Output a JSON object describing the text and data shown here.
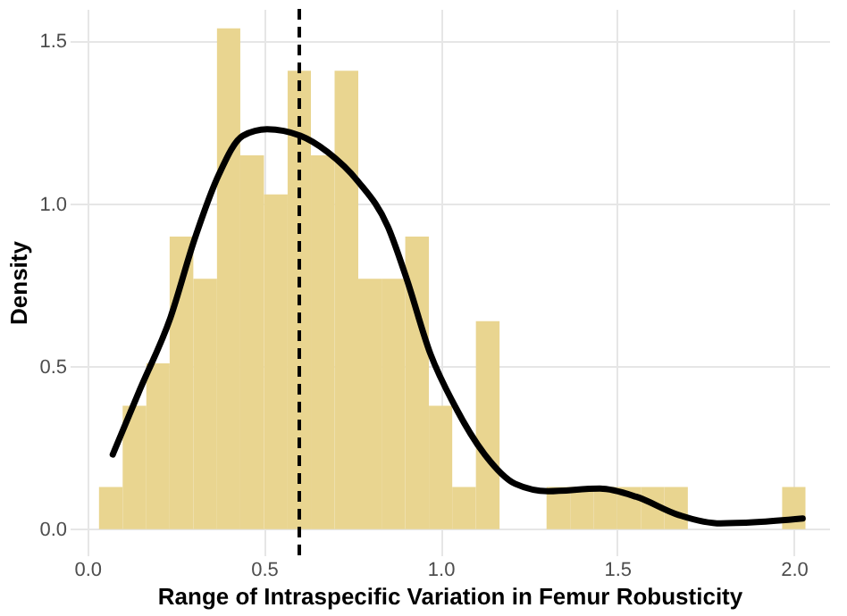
{
  "chart_data": {
    "type": "histogram",
    "xlabel": "Range of Intraspecific Variation in Femur Robusticity",
    "ylabel": "Density",
    "xlim": [
      -0.05,
      2.1
    ],
    "xticks": [
      {
        "value": 0,
        "label": "0.0"
      },
      0.5,
      {
        "value": 1,
        "label": "1.0"
      },
      1.5,
      {
        "value": 2,
        "label": "2.0"
      }
    ],
    "ylim": [
      -0.08,
      1.6
    ],
    "yticks": [
      {
        "value": 0,
        "label": "0.0"
      },
      0.5,
      {
        "value": 1,
        "label": "1.0"
      },
      1.5
    ],
    "grid": true,
    "series": [
      {
        "color": "#e9d590",
        "bins": [
          0.033,
          0.1,
          0.167,
          0.233,
          0.3,
          0.367,
          0.433,
          0.5,
          0.567,
          0.633,
          0.7,
          0.767,
          0.833,
          0.9,
          0.967,
          1.033,
          1.1,
          1.167,
          1.233,
          1.3,
          1.367,
          1.433,
          1.5,
          1.567,
          1.633,
          1.7,
          1.767,
          1.833,
          1.9,
          1.967,
          2.033
        ],
        "values": [
          0.13,
          0.38,
          0.51,
          0.9,
          0.77,
          1.54,
          1.15,
          1.03,
          1.41,
          1.15,
          1.41,
          0.77,
          0.77,
          0.9,
          0.38,
          0.13,
          0.64,
          0,
          0,
          0.13,
          0.13,
          0.13,
          0.13,
          0.13,
          0.13,
          0,
          0,
          0,
          0,
          0.13
        ]
      },
      {
        "type": "line",
        "color": "#000000",
        "x": [
          0.072,
          0.149,
          0.235,
          0.303,
          0.372,
          0.44,
          0.509,
          0.603,
          0.68,
          0.766,
          0.851,
          0.904,
          0.971,
          1.04,
          1.125,
          1.211,
          1.305,
          1.451,
          1.554,
          1.674,
          1.793,
          1.896,
          2.025
        ],
        "values": [
          0.23,
          0.43,
          0.65,
          0.89,
          1.09,
          1.21,
          1.23,
          1.21,
          1.16,
          1.07,
          0.93,
          0.77,
          0.54,
          0.38,
          0.23,
          0.14,
          0.117,
          0.125,
          0.1,
          0.044,
          0.018,
          0.022,
          0.033
        ]
      }
    ],
    "ref_lines": [
      {
        "axis": "x",
        "value": 0.6,
        "color": "#000000",
        "line_style": "dashed"
      }
    ]
  }
}
